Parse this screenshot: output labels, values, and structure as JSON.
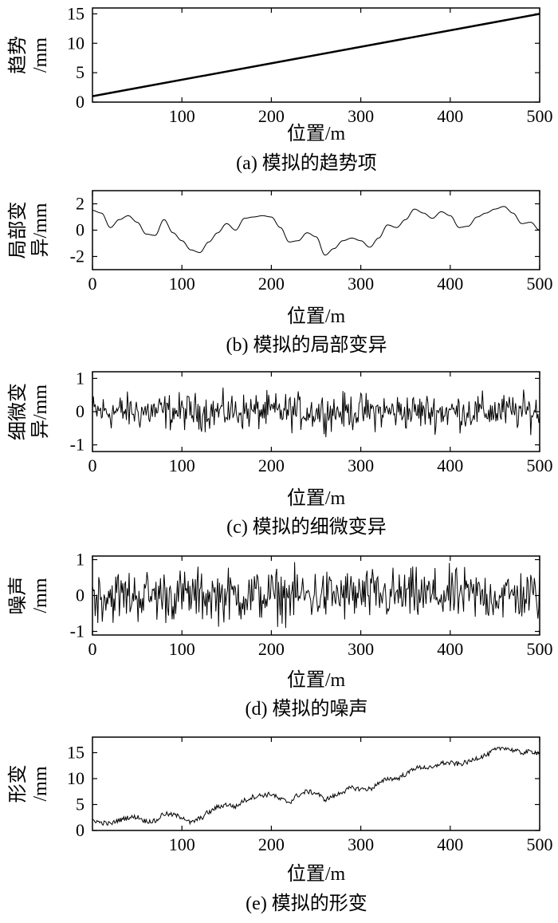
{
  "chart_data": [
    {
      "type": "line",
      "xlabel": "位置/m",
      "ylabel_lines": [
        "趋势",
        "/mm"
      ],
      "caption": "(a) 模拟的趋势项",
      "xlim": [
        0,
        500
      ],
      "ylim": [
        0,
        16
      ],
      "xticks": [
        100,
        200,
        300,
        400,
        500
      ],
      "yticks": [
        0,
        5,
        10,
        15
      ],
      "series": [
        {
          "x": [
            0,
            500
          ],
          "y": [
            1,
            15
          ]
        }
      ]
    },
    {
      "type": "line",
      "xlabel": "位置/m",
      "ylabel_lines": [
        "局部变",
        "异/mm"
      ],
      "caption": "(b) 模拟的局部变异",
      "xlim": [
        0,
        500
      ],
      "ylim": [
        -3,
        3
      ],
      "xticks": [
        0,
        100,
        200,
        300,
        400,
        500
      ],
      "yticks": [
        -2,
        0,
        2
      ],
      "series": [
        {
          "x": [
            0,
            10,
            20,
            30,
            40,
            50,
            60,
            70,
            80,
            90,
            100,
            110,
            120,
            130,
            140,
            150,
            160,
            170,
            180,
            190,
            200,
            210,
            220,
            230,
            240,
            250,
            260,
            270,
            280,
            290,
            300,
            310,
            320,
            330,
            340,
            350,
            360,
            370,
            380,
            390,
            400,
            410,
            420,
            430,
            440,
            450,
            460,
            470,
            480,
            490,
            500
          ],
          "y": [
            1.5,
            1.3,
            0.2,
            0.8,
            1.1,
            0.6,
            -0.3,
            -0.4,
            0.8,
            -0.2,
            -0.8,
            -1.5,
            -1.7,
            -0.9,
            -0.2,
            0.5,
            0.0,
            0.9,
            1.0,
            1.1,
            1.0,
            0.2,
            -0.9,
            -0.8,
            -0.2,
            -0.5,
            -1.9,
            -1.4,
            -0.8,
            -0.6,
            -0.8,
            -1.3,
            -0.6,
            0.4,
            0.2,
            0.8,
            1.6,
            1.3,
            0.9,
            1.4,
            1.1,
            0.2,
            0.3,
            1.0,
            1.3,
            1.6,
            1.8,
            1.3,
            0.5,
            0.6,
            0.0
          ]
        }
      ]
    },
    {
      "type": "line",
      "xlabel": "位置/m",
      "ylabel_lines": [
        "细微变",
        "异/mm"
      ],
      "caption": "(c) 模拟的细微变异",
      "xlim": [
        0,
        500
      ],
      "ylim": [
        -1.2,
        1.2
      ],
      "xticks": [
        0,
        100,
        200,
        300,
        400,
        500
      ],
      "yticks": [
        -1,
        0,
        1
      ],
      "series": [
        {
          "x": [
            0,
            500
          ],
          "amplitude": 0.6,
          "noise": true
        }
      ]
    },
    {
      "type": "line",
      "xlabel": "位置/m",
      "ylabel_lines": [
        "噪声",
        "/mm"
      ],
      "caption": "(d) 模拟的噪声",
      "xlim": [
        0,
        500
      ],
      "ylim": [
        -1.1,
        1.1
      ],
      "xticks": [
        0,
        100,
        200,
        300,
        400,
        500
      ],
      "yticks": [
        -1,
        0,
        1
      ],
      "series": [
        {
          "x": [
            0,
            500
          ],
          "amplitude": 0.8,
          "noise": true
        }
      ]
    },
    {
      "type": "line",
      "xlabel": "位置/m",
      "ylabel_lines": [
        "形变",
        "/mm"
      ],
      "caption": "(e) 模拟的形变",
      "xlim": [
        0,
        500
      ],
      "ylim": [
        0,
        18
      ],
      "xticks": [
        100,
        200,
        300,
        400,
        500
      ],
      "yticks": [
        0,
        5,
        10,
        15
      ],
      "series": [
        {
          "x": [
            0,
            10,
            20,
            30,
            40,
            50,
            60,
            70,
            80,
            90,
            100,
            110,
            120,
            130,
            140,
            150,
            160,
            170,
            180,
            190,
            200,
            210,
            220,
            230,
            240,
            250,
            260,
            270,
            280,
            290,
            300,
            310,
            320,
            330,
            340,
            350,
            360,
            370,
            380,
            390,
            400,
            410,
            420,
            430,
            440,
            450,
            460,
            470,
            480,
            490,
            500
          ],
          "y": [
            2.0,
            1.5,
            1.3,
            2.0,
            2.5,
            2.6,
            1.8,
            1.8,
            3.2,
            3.0,
            2.6,
            1.5,
            2.3,
            3.5,
            4.5,
            5.0,
            4.6,
            5.8,
            6.5,
            6.8,
            7.0,
            6.0,
            5.5,
            6.8,
            7.5,
            7.2,
            6.0,
            6.6,
            7.5,
            8.2,
            8.0,
            8.0,
            9.0,
            10.0,
            10.0,
            10.8,
            12.0,
            12.2,
            12.0,
            13.0,
            13.0,
            12.8,
            13.2,
            14.0,
            14.5,
            15.5,
            16.0,
            15.5,
            15.0,
            15.2,
            15.0
          ]
        }
      ]
    }
  ]
}
